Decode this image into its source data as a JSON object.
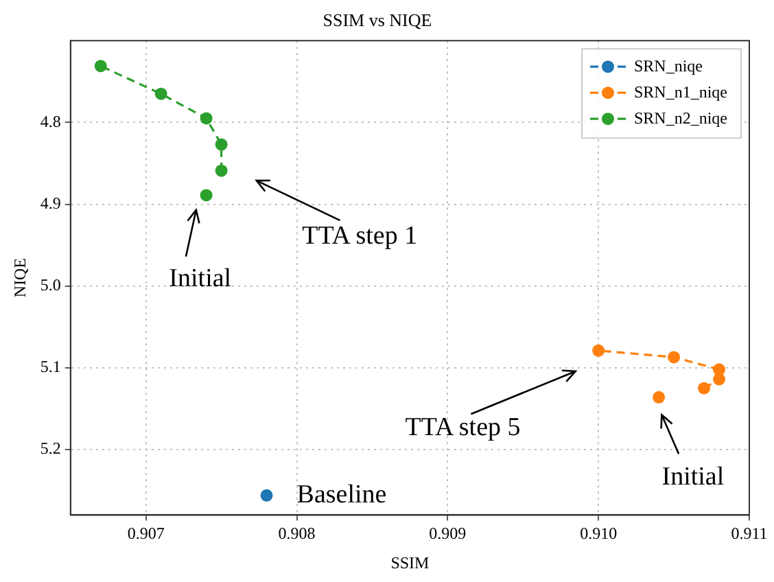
{
  "chart_data": {
    "type": "line",
    "title": "SSIM vs NIQE",
    "xlabel": "SSIM",
    "ylabel": "NIQE",
    "xlim": [
      0.9065,
      0.911
    ],
    "xticks": [
      {
        "value": 0.907,
        "label": "0.907"
      },
      {
        "value": 0.908,
        "label": "0.908"
      },
      {
        "value": 0.909,
        "label": "0.909"
      },
      {
        "value": 0.91,
        "label": "0.910"
      },
      {
        "value": 0.911,
        "label": "0.911"
      }
    ],
    "ylim": [
      5.28,
      4.7
    ],
    "yticks": [
      4.8,
      4.9,
      {
        "value": 5.0,
        "label": "5.0"
      },
      5.1,
      5.2
    ],
    "grid": true,
    "legend": "top right",
    "marker": "circle",
    "line_style": "dashed",
    "series": [
      {
        "name": "SRN_niqe",
        "color": "#1f77b4",
        "x": [
          0.9078
        ],
        "values": [
          5.256
        ]
      },
      {
        "name": "SRN_n1_niqe",
        "color": "#ff7f0e",
        "x": [
          0.9107,
          0.9108,
          0.9108,
          0.9105,
          0.91
        ],
        "values": [
          5.125,
          5.114,
          5.102,
          5.087,
          5.079
        ]
      },
      {
        "name": "SRN_n2_niqe",
        "color": "#2ca02c",
        "x": [
          0.9075,
          0.9075,
          0.9074,
          0.9071,
          0.9067
        ],
        "values": [
          4.859,
          4.827,
          4.795,
          4.765,
          4.731
        ]
      },
      {
        "color": "#ff7f0e",
        "x": [
          0.9104
        ],
        "values": [
          5.136
        ]
      },
      {
        "color": "#2ca02c",
        "x": [
          0.9074
        ],
        "values": [
          4.889
        ]
      }
    ],
    "annotations": [
      "Initial",
      "TTA step 1",
      "TTA step 5",
      "Initial",
      {
        "text": "Baseline",
        "x": 0.9078,
        "y": 5.256
      }
    ]
  }
}
